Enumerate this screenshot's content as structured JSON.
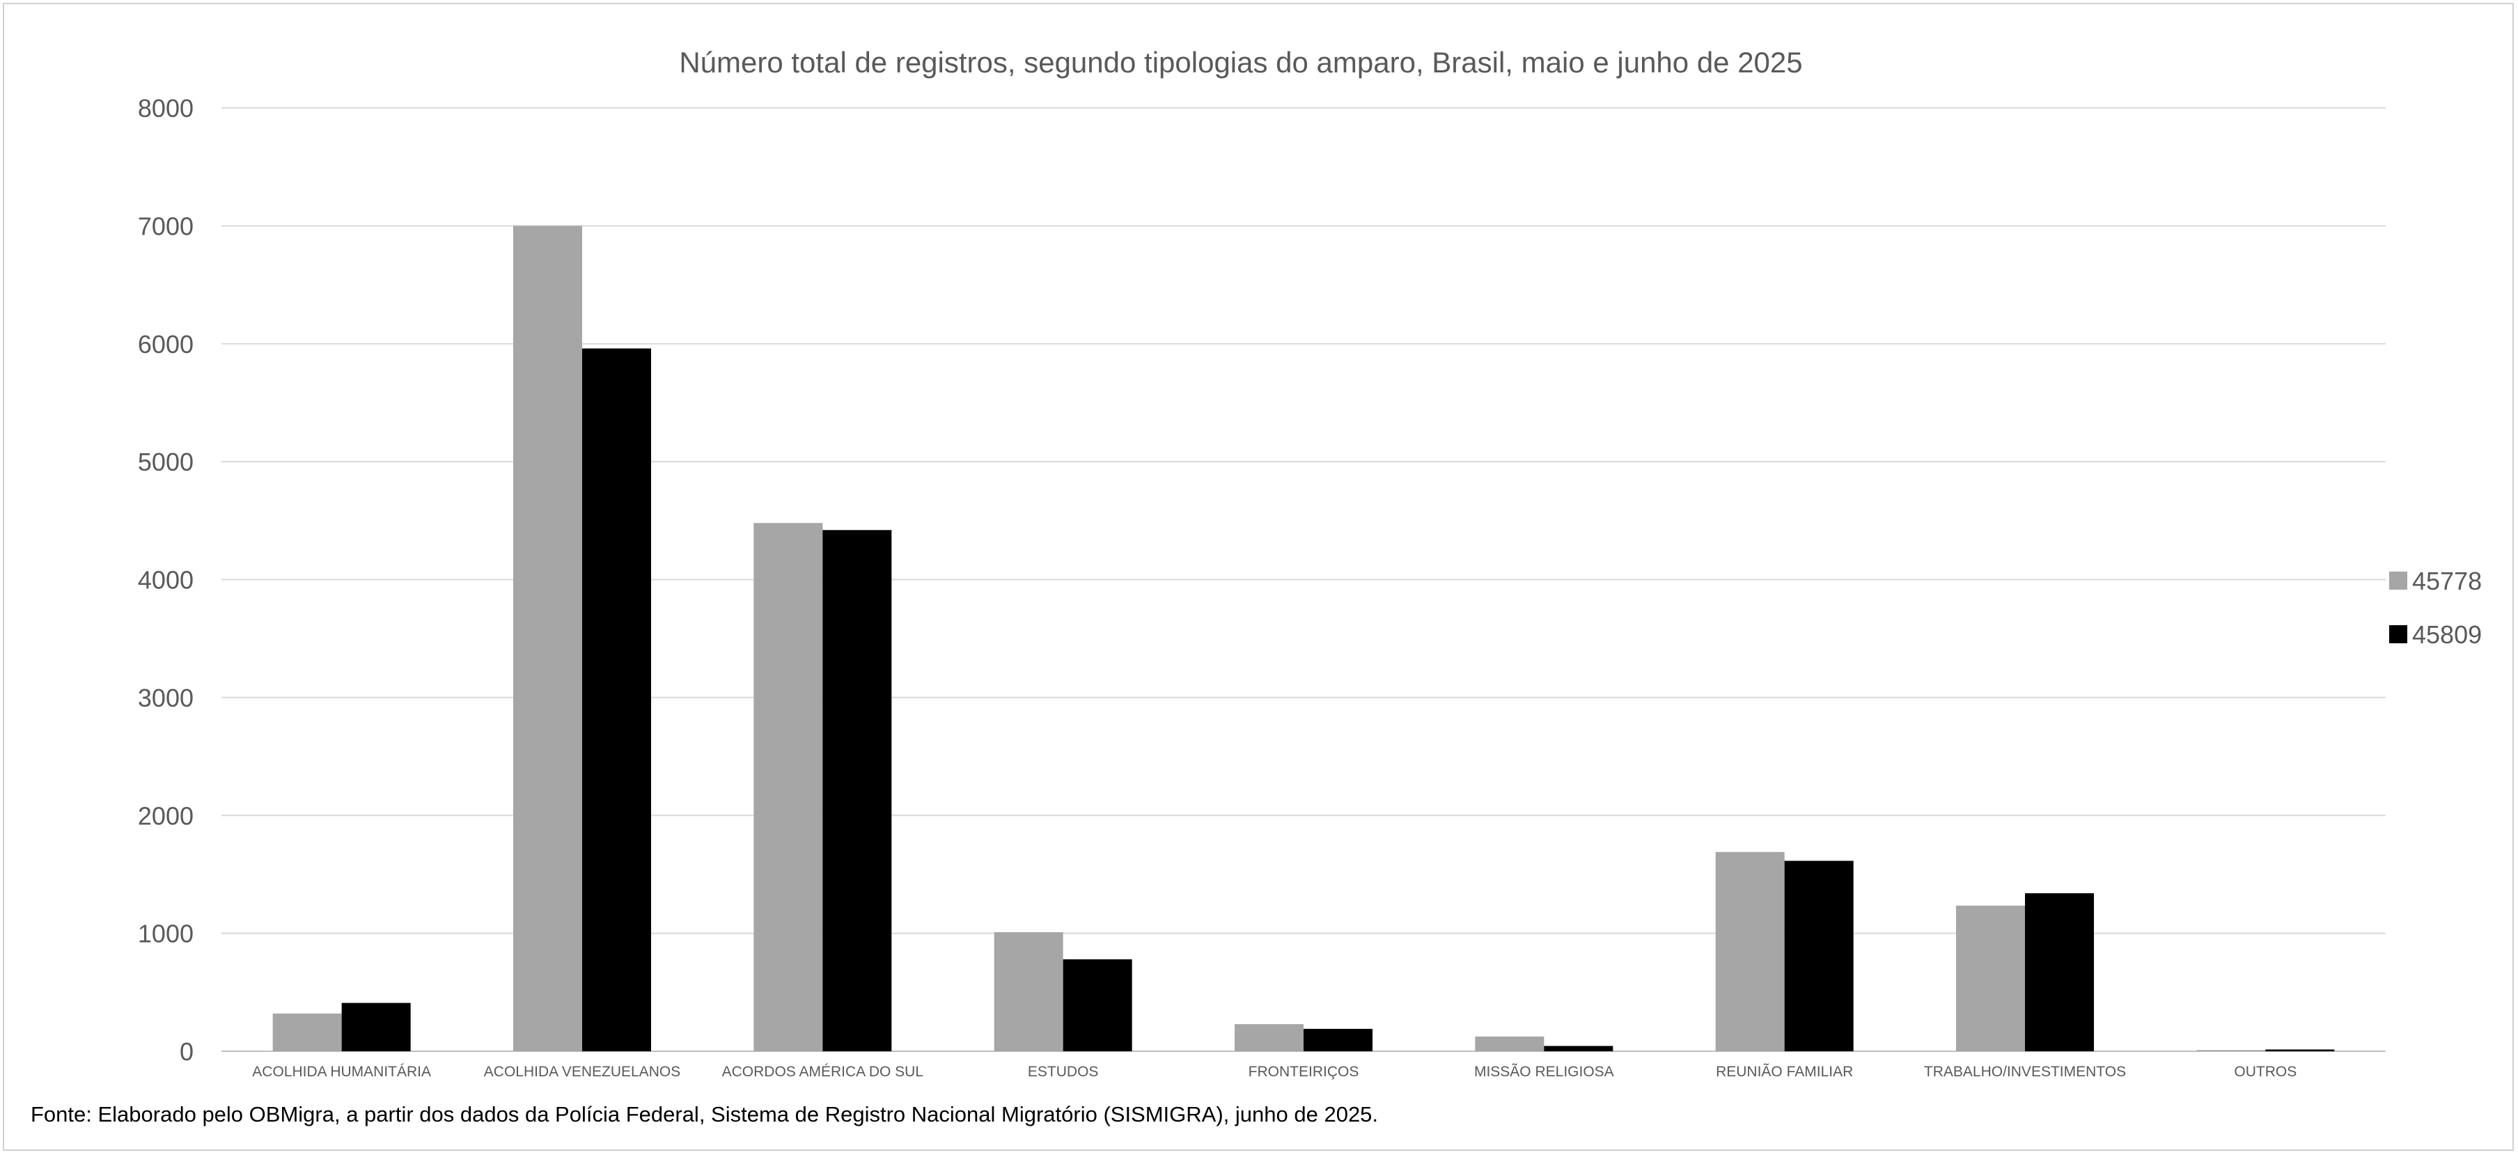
{
  "chart_data": {
    "type": "bar",
    "title": "Número total de registros, segundo tipologias do amparo, Brasil, maio e junho de 2025",
    "xlabel": "",
    "ylabel": "",
    "ylim": [
      0,
      8000
    ],
    "yticks": [
      0,
      1000,
      2000,
      3000,
      4000,
      5000,
      6000,
      7000,
      8000
    ],
    "grid": true,
    "legend_position": "right",
    "categories": [
      "ACOLHIDA HUMANITÁRIA",
      "ACOLHIDA VENEZUELANOS",
      "ACORDOS AMÉRICA DO SUL",
      "ESTUDOS",
      "FRONTEIRIÇOS",
      "MISSÃO RELIGIOSA",
      "REUNIÃO FAMILIAR",
      "TRABALHO/INVESTIMENTOS",
      "OUTROS"
    ],
    "series": [
      {
        "name": "45778",
        "color": "#a6a6a6",
        "values": [
          320,
          7000,
          4480,
          1010,
          230,
          125,
          1690,
          1235,
          10
        ]
      },
      {
        "name": "45809",
        "color": "#000000",
        "values": [
          410,
          5960,
          4420,
          780,
          190,
          45,
          1615,
          1340,
          15
        ]
      }
    ]
  },
  "source_note": "Fonte: Elaborado pelo OBMigra, a partir dos dados da Polícia Federal, Sistema de Registro Nacional Migratório (SISMIGRA), junho de  2025."
}
